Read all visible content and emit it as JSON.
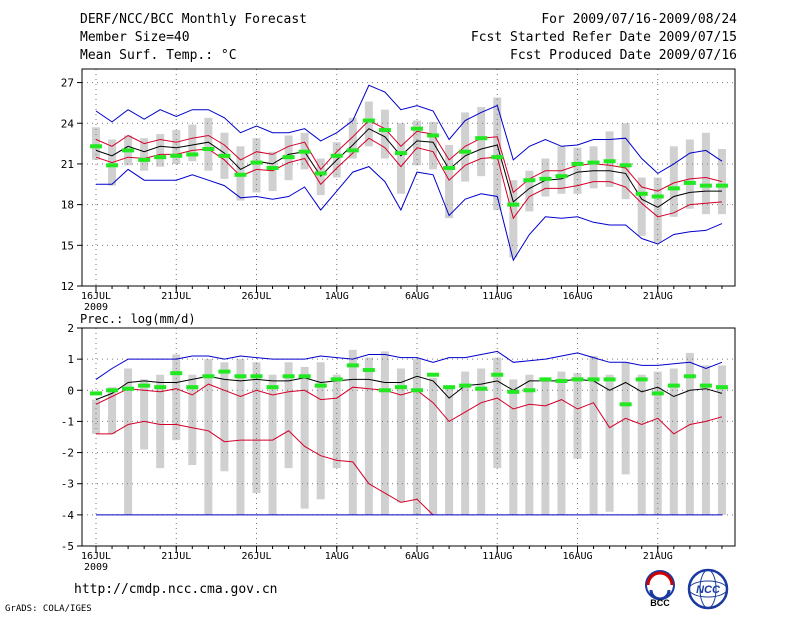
{
  "header": {
    "line1_left": "DERF/NCC/BCC Monthly Forecast",
    "line2_left": "Member Size=40",
    "line3_left": "Mean Surf. Temp.: °C",
    "line1_right": "For 2009/07/16-2009/08/24",
    "line2_right": "Fcst Started Refer Date 2009/07/15",
    "line3_right": "Fcst Produced Date 2009/07/16"
  },
  "footer": {
    "url": "http://cmdp.ncc.cma.gov.cn",
    "credit": "GrADS: COLA/IGES",
    "logo1": "BCC",
    "logo2": "NCC"
  },
  "colors": {
    "mean": "#000000",
    "inner": "#d4002a",
    "outer": "#0000cc",
    "box": "#d0d0d0",
    "median": "#22e822"
  },
  "chart_data": [
    {
      "type": "line",
      "title": "Mean Surf. Temp.: °C",
      "x_tick_labels": [
        "16JUL",
        "21JUL",
        "26JUL",
        "1AUG",
        "6AUG",
        "11AUG",
        "16AUG",
        "21AUG"
      ],
      "x_tick_index": [
        0,
        5,
        10,
        15,
        20,
        25,
        30,
        35
      ],
      "x_sublabel": "2009",
      "ylim": [
        12,
        28
      ],
      "yticks": [
        12,
        15,
        18,
        21,
        24,
        27
      ],
      "series": [
        {
          "name": "max",
          "values": [
            24.9,
            24.1,
            25.0,
            24.3,
            25.0,
            24.5,
            25.0,
            25.0,
            24.4,
            23.3,
            23.8,
            23.3,
            23.3,
            23.6,
            22.7,
            23.3,
            24.2,
            26.8,
            26.3,
            25.0,
            25.3,
            24.9,
            22.8,
            24.2,
            24.8,
            25.3,
            21.3,
            22.3,
            22.8,
            22.3,
            22.4,
            22.8,
            22.8,
            22.9,
            21.4,
            20.3,
            21.0,
            21.8,
            22.0,
            21.2
          ]
        },
        {
          "name": "upper",
          "values": [
            22.8,
            22.3,
            23.1,
            22.5,
            22.8,
            22.6,
            22.9,
            23.1,
            22.4,
            21.3,
            21.9,
            21.7,
            22.3,
            22.6,
            20.6,
            21.9,
            23.0,
            24.2,
            23.6,
            22.3,
            23.4,
            23.2,
            21.3,
            22.3,
            22.9,
            23.0,
            18.9,
            19.9,
            20.5,
            20.5,
            20.9,
            21.0,
            20.9,
            20.7,
            19.3,
            19.0,
            19.6,
            19.9,
            20.0,
            19.7
          ]
        },
        {
          "name": "mean",
          "values": [
            22.0,
            21.6,
            22.3,
            21.9,
            22.3,
            22.2,
            22.4,
            22.6,
            21.8,
            20.6,
            21.2,
            21.0,
            21.7,
            21.9,
            20.1,
            21.3,
            22.4,
            23.6,
            23.0,
            21.6,
            22.7,
            22.6,
            20.6,
            21.6,
            22.1,
            22.4,
            18.2,
            19.2,
            19.8,
            19.9,
            20.4,
            20.5,
            20.5,
            20.3,
            18.4,
            17.8,
            18.6,
            18.9,
            19.0,
            19.0
          ]
        },
        {
          "name": "lower",
          "values": [
            21.5,
            21.1,
            21.5,
            21.4,
            21.7,
            21.7,
            22.0,
            22.1,
            21.3,
            20.1,
            20.6,
            20.5,
            21.1,
            21.4,
            19.5,
            20.7,
            21.8,
            22.9,
            22.2,
            20.8,
            22.2,
            21.9,
            19.8,
            20.9,
            21.4,
            21.5,
            17.0,
            18.6,
            19.2,
            19.2,
            19.4,
            19.7,
            19.7,
            19.3,
            18.1,
            17.1,
            17.4,
            18.0,
            18.1,
            18.2
          ]
        },
        {
          "name": "min",
          "values": [
            19.5,
            19.5,
            20.6,
            19.8,
            19.8,
            19.8,
            20.2,
            19.8,
            19.4,
            18.5,
            18.6,
            18.4,
            18.6,
            19.3,
            17.6,
            19.0,
            20.4,
            20.8,
            19.7,
            17.6,
            20.4,
            20.2,
            17.2,
            18.4,
            18.8,
            18.6,
            13.9,
            15.8,
            17.1,
            17.0,
            17.1,
            16.7,
            16.5,
            16.5,
            15.5,
            15.1,
            15.8,
            16.0,
            16.1,
            16.6
          ]
        }
      ],
      "box_low": [
        21.3,
        19.4,
        20.9,
        20.5,
        20.8,
        21.0,
        21.2,
        20.5,
        19.9,
        18.3,
        18.9,
        19.0,
        19.8,
        20.6,
        18.7,
        20.0,
        21.4,
        22.3,
        21.4,
        18.8,
        20.9,
        20.6,
        17.0,
        19.7,
        20.1,
        17.6,
        14.1,
        17.5,
        18.6,
        18.8,
        18.8,
        19.2,
        19.3,
        18.4,
        15.7,
        15.2,
        17.1,
        17.7,
        17.3,
        17.3
      ],
      "box_high": [
        23.7,
        22.8,
        23.1,
        22.9,
        23.2,
        23.5,
        23.9,
        24.4,
        23.3,
        22.3,
        22.9,
        21.9,
        23.1,
        23.3,
        21.4,
        22.6,
        24.4,
        25.6,
        25.0,
        24.0,
        24.2,
        24.1,
        22.4,
        24.8,
        25.2,
        25.9,
        19.8,
        20.5,
        21.4,
        22.3,
        22.2,
        22.3,
        23.4,
        24.0,
        20.0,
        20.0,
        22.3,
        22.8,
        23.3,
        22.1
      ],
      "median": [
        22.3,
        20.9,
        22.0,
        21.3,
        21.5,
        21.6,
        21.7,
        22.1,
        21.6,
        20.2,
        21.1,
        20.7,
        21.5,
        21.9,
        20.3,
        21.6,
        22.0,
        24.2,
        23.5,
        21.8,
        23.6,
        23.1,
        20.7,
        21.9,
        22.9,
        21.5,
        18.0,
        19.8,
        19.9,
        20.1,
        21.0,
        21.1,
        21.2,
        20.9,
        18.8,
        18.6,
        19.2,
        19.6,
        19.4,
        19.4
      ]
    },
    {
      "type": "line",
      "title": "Prec.: log(mm/d)",
      "x_tick_labels": [
        "16JUL",
        "21JUL",
        "26JUL",
        "1AUG",
        "6AUG",
        "11AUG",
        "16AUG",
        "21AUG"
      ],
      "x_tick_index": [
        0,
        5,
        10,
        15,
        20,
        25,
        30,
        35
      ],
      "x_sublabel": "2009",
      "ylim": [
        -5,
        2
      ],
      "yticks": [
        -5,
        -4,
        -3,
        -2,
        -1,
        0,
        1,
        2
      ],
      "series": [
        {
          "name": "max",
          "values": [
            0.35,
            0.7,
            1.0,
            1.0,
            1.0,
            1.0,
            1.1,
            1.1,
            1.0,
            1.1,
            1.05,
            1.0,
            1.0,
            1.0,
            1.1,
            1.05,
            1.0,
            1.15,
            1.15,
            1.05,
            1.05,
            0.9,
            1.05,
            1.05,
            1.15,
            1.25,
            0.9,
            0.95,
            1.0,
            1.1,
            1.2,
            1.05,
            0.9,
            0.9,
            0.8,
            0.8,
            0.85,
            0.9,
            0.7,
            0.9
          ]
        },
        {
          "name": "mean",
          "values": [
            -0.3,
            -0.1,
            0.25,
            0.3,
            0.25,
            0.25,
            0.35,
            0.45,
            0.35,
            0.3,
            0.35,
            0.3,
            0.3,
            0.4,
            0.25,
            0.3,
            0.35,
            0.35,
            0.25,
            0.25,
            0.45,
            0.3,
            -0.25,
            0.15,
            0.2,
            0.3,
            0.0,
            0.3,
            0.3,
            0.3,
            0.35,
            0.3,
            0.0,
            0.25,
            -0.05,
            0.1,
            -0.2,
            0.0,
            0.05,
            -0.1
          ]
        },
        {
          "name": "lower",
          "values": [
            -0.45,
            -0.2,
            0.05,
            0.0,
            -0.05,
            0.05,
            -0.15,
            0.2,
            0.0,
            -0.2,
            0.0,
            -0.15,
            -0.05,
            0.0,
            -0.3,
            -0.25,
            0.1,
            0.05,
            0.0,
            -0.15,
            0.0,
            -0.4,
            -1.0,
            -0.7,
            -0.4,
            -0.25,
            -0.6,
            -0.45,
            -0.5,
            -0.3,
            -0.6,
            -0.4,
            -1.2,
            -0.9,
            -1.1,
            -0.9,
            -1.4,
            -1.1,
            -1.0,
            -0.85
          ]
        },
        {
          "name": "min",
          "values": [
            -1.4,
            -1.4,
            -1.1,
            -1.0,
            -1.1,
            -1.1,
            -1.2,
            -1.3,
            -1.65,
            -1.6,
            -1.6,
            -1.6,
            -1.3,
            -1.8,
            -2.1,
            -2.25,
            -2.3,
            -3.0,
            -3.3,
            -3.6,
            -3.5,
            -4.0,
            -4.0,
            -4.0,
            -4.0,
            -4.0,
            -4.0,
            -4.0,
            -4.0,
            -4.0,
            -4.0,
            -4.0,
            -4.0,
            -4.0,
            -4.0,
            -4.0,
            -4.0,
            -4.0,
            -4.0,
            -4.0
          ]
        },
        {
          "name": "floor",
          "values": [
            -4,
            -4,
            -4,
            -4,
            -4,
            -4,
            -4,
            -4,
            -4,
            -4,
            -4,
            -4,
            -4,
            -4,
            -4,
            -4,
            -4,
            -4,
            -4,
            -4,
            -4,
            -4,
            -4,
            -4,
            -4,
            -4,
            -4,
            -4,
            -4,
            -4,
            -4,
            -4,
            -4,
            -4,
            -4,
            -4,
            -4,
            -4,
            -4,
            -4
          ]
        }
      ],
      "box_low": [
        -1.4,
        -1.4,
        -4.0,
        -1.9,
        -2.5,
        -1.6,
        -2.4,
        -4.0,
        -2.6,
        -4.0,
        -3.3,
        -4.0,
        -2.5,
        -3.8,
        -3.5,
        -2.5,
        -4.0,
        -4.0,
        -4.0,
        -3.6,
        -4.0,
        -4.0,
        -4.0,
        -4.0,
        -4.0,
        -2.5,
        -4.0,
        -4.0,
        -4.0,
        -4.0,
        -2.2,
        -4.0,
        -3.9,
        -2.7,
        -4.0,
        -4.0,
        -4.0,
        -4.0,
        -4.0,
        -4.0
      ],
      "box_high": [
        -0.3,
        0.1,
        0.7,
        0.35,
        0.5,
        1.15,
        0.5,
        1.0,
        0.9,
        1.0,
        0.9,
        0.5,
        0.9,
        0.75,
        0.9,
        0.5,
        1.3,
        1.05,
        1.25,
        0.7,
        1.0,
        0.4,
        0.1,
        0.6,
        0.7,
        1.05,
        0.35,
        0.5,
        0.4,
        0.6,
        0.55,
        1.1,
        0.5,
        0.9,
        0.5,
        0.6,
        0.7,
        1.2,
        0.8,
        0.8
      ],
      "median": [
        -0.1,
        0.0,
        0.05,
        0.15,
        0.1,
        0.55,
        0.1,
        0.45,
        0.6,
        0.45,
        0.45,
        0.1,
        0.45,
        0.45,
        0.15,
        0.35,
        0.8,
        0.65,
        0.0,
        0.1,
        0.0,
        0.5,
        0.1,
        0.15,
        0.05,
        0.5,
        -0.05,
        0.0,
        0.35,
        0.3,
        0.35,
        0.35,
        0.35,
        -0.45,
        0.35,
        -0.1,
        0.15,
        0.45,
        0.15,
        0.1
      ]
    }
  ]
}
